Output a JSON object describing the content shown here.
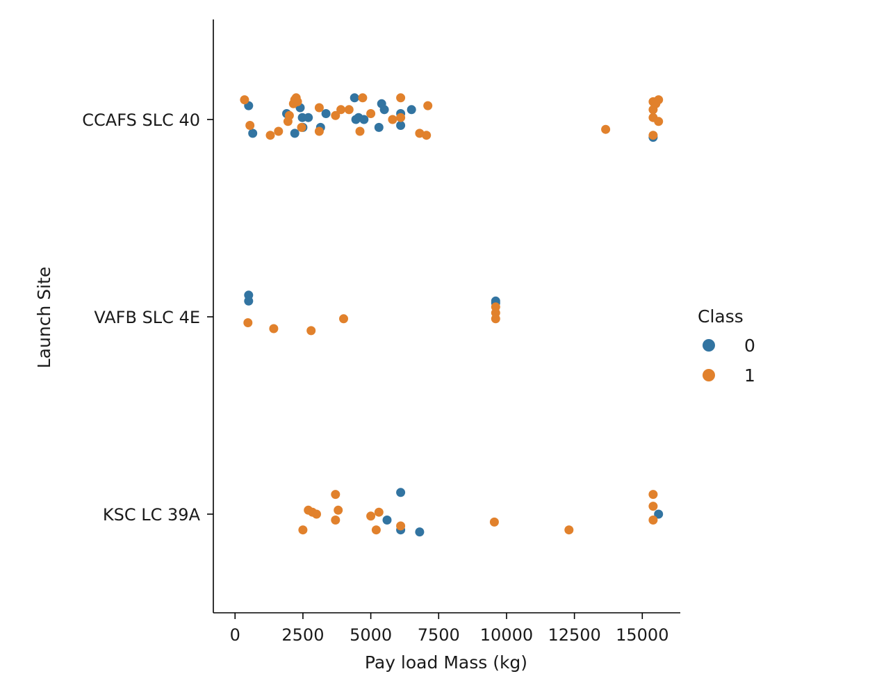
{
  "chart_data": {
    "type": "scatter",
    "title": "",
    "xlabel": "Pay load Mass (kg)",
    "ylabel": "Launch Site",
    "xlim": [
      -800,
      16400
    ],
    "xticks": [
      0,
      2500,
      5000,
      7500,
      10000,
      12500,
      15000
    ],
    "xtick_labels": [
      "0",
      "2500",
      "5000",
      "7500",
      "10000",
      "12500",
      "15000"
    ],
    "categories": [
      "CCAFS SLC 40",
      "VAFB SLC 4E",
      "KSC LC 39A"
    ],
    "grid": false,
    "legend": {
      "title": "Class",
      "placement": "right",
      "entries": [
        "0",
        "1"
      ]
    },
    "colors": {
      "0": "#3274a1",
      "1": "#e1812c"
    },
    "series": [
      {
        "name": "0",
        "points": [
          {
            "x": 500,
            "site": "CCAFS SLC 40",
            "jitter": -0.07
          },
          {
            "x": 650,
            "site": "CCAFS SLC 40",
            "jitter": 0.07
          },
          {
            "x": 1900,
            "site": "CCAFS SLC 40",
            "jitter": -0.03
          },
          {
            "x": 2200,
            "site": "CCAFS SLC 40",
            "jitter": 0.07
          },
          {
            "x": 2400,
            "site": "CCAFS SLC 40",
            "jitter": -0.06
          },
          {
            "x": 2480,
            "site": "CCAFS SLC 40",
            "jitter": -0.01
          },
          {
            "x": 2500,
            "site": "CCAFS SLC 40",
            "jitter": 0.04
          },
          {
            "x": 2700,
            "site": "CCAFS SLC 40",
            "jitter": -0.01
          },
          {
            "x": 3150,
            "site": "CCAFS SLC 40",
            "jitter": 0.04
          },
          {
            "x": 3350,
            "site": "CCAFS SLC 40",
            "jitter": -0.03
          },
          {
            "x": 4400,
            "site": "CCAFS SLC 40",
            "jitter": -0.11
          },
          {
            "x": 4450,
            "site": "CCAFS SLC 40",
            "jitter": 0.0
          },
          {
            "x": 4550,
            "site": "CCAFS SLC 40",
            "jitter": -0.01
          },
          {
            "x": 4750,
            "site": "CCAFS SLC 40",
            "jitter": 0.0
          },
          {
            "x": 5300,
            "site": "CCAFS SLC 40",
            "jitter": 0.04
          },
          {
            "x": 5400,
            "site": "CCAFS SLC 40",
            "jitter": -0.08
          },
          {
            "x": 5500,
            "site": "CCAFS SLC 40",
            "jitter": -0.05
          },
          {
            "x": 6100,
            "site": "CCAFS SLC 40",
            "jitter": -0.03
          },
          {
            "x": 6100,
            "site": "CCAFS SLC 40",
            "jitter": 0.03
          },
          {
            "x": 6500,
            "site": "CCAFS SLC 40",
            "jitter": -0.05
          },
          {
            "x": 15400,
            "site": "CCAFS SLC 40",
            "jitter": 0.09
          },
          {
            "x": 500,
            "site": "VAFB SLC 4E",
            "jitter": -0.11
          },
          {
            "x": 500,
            "site": "VAFB SLC 4E",
            "jitter": -0.08
          },
          {
            "x": 9600,
            "site": "VAFB SLC 4E",
            "jitter": -0.08
          },
          {
            "x": 9600,
            "site": "VAFB SLC 4E",
            "jitter": -0.07
          },
          {
            "x": 6100,
            "site": "KSC LC 39A",
            "jitter": -0.11
          },
          {
            "x": 5600,
            "site": "KSC LC 39A",
            "jitter": 0.03
          },
          {
            "x": 6100,
            "site": "KSC LC 39A",
            "jitter": 0.08
          },
          {
            "x": 6800,
            "site": "KSC LC 39A",
            "jitter": 0.09
          },
          {
            "x": 15600,
            "site": "KSC LC 39A",
            "jitter": 0.0
          }
        ]
      },
      {
        "name": "1",
        "points": [
          {
            "x": 350,
            "site": "CCAFS SLC 40",
            "jitter": -0.1
          },
          {
            "x": 550,
            "site": "CCAFS SLC 40",
            "jitter": 0.03
          },
          {
            "x": 1300,
            "site": "CCAFS SLC 40",
            "jitter": 0.08
          },
          {
            "x": 1600,
            "site": "CCAFS SLC 40",
            "jitter": 0.06
          },
          {
            "x": 1950,
            "site": "CCAFS SLC 40",
            "jitter": 0.01
          },
          {
            "x": 2000,
            "site": "CCAFS SLC 40",
            "jitter": -0.02
          },
          {
            "x": 2150,
            "site": "CCAFS SLC 40",
            "jitter": -0.08
          },
          {
            "x": 2200,
            "site": "CCAFS SLC 40",
            "jitter": -0.1
          },
          {
            "x": 2250,
            "site": "CCAFS SLC 40",
            "jitter": -0.11
          },
          {
            "x": 2300,
            "site": "CCAFS SLC 40",
            "jitter": -0.09
          },
          {
            "x": 2450,
            "site": "CCAFS SLC 40",
            "jitter": 0.04
          },
          {
            "x": 3100,
            "site": "CCAFS SLC 40",
            "jitter": -0.06
          },
          {
            "x": 3100,
            "site": "CCAFS SLC 40",
            "jitter": 0.06
          },
          {
            "x": 3700,
            "site": "CCAFS SLC 40",
            "jitter": -0.02
          },
          {
            "x": 3900,
            "site": "CCAFS SLC 40",
            "jitter": -0.05
          },
          {
            "x": 4200,
            "site": "CCAFS SLC 40",
            "jitter": -0.05
          },
          {
            "x": 4600,
            "site": "CCAFS SLC 40",
            "jitter": 0.06
          },
          {
            "x": 4700,
            "site": "CCAFS SLC 40",
            "jitter": -0.11
          },
          {
            "x": 5000,
            "site": "CCAFS SLC 40",
            "jitter": -0.03
          },
          {
            "x": 5800,
            "site": "CCAFS SLC 40",
            "jitter": 0.0
          },
          {
            "x": 6100,
            "site": "CCAFS SLC 40",
            "jitter": -0.11
          },
          {
            "x": 6100,
            "site": "CCAFS SLC 40",
            "jitter": -0.01
          },
          {
            "x": 6800,
            "site": "CCAFS SLC 40",
            "jitter": 0.07
          },
          {
            "x": 7050,
            "site": "CCAFS SLC 40",
            "jitter": 0.08
          },
          {
            "x": 7100,
            "site": "CCAFS SLC 40",
            "jitter": -0.07
          },
          {
            "x": 13650,
            "site": "CCAFS SLC 40",
            "jitter": 0.05
          },
          {
            "x": 15400,
            "site": "CCAFS SLC 40",
            "jitter": -0.09
          },
          {
            "x": 15400,
            "site": "CCAFS SLC 40",
            "jitter": -0.05
          },
          {
            "x": 15400,
            "site": "CCAFS SLC 40",
            "jitter": -0.01
          },
          {
            "x": 15400,
            "site": "CCAFS SLC 40",
            "jitter": 0.08
          },
          {
            "x": 15500,
            "site": "CCAFS SLC 40",
            "jitter": -0.08
          },
          {
            "x": 15600,
            "site": "CCAFS SLC 40",
            "jitter": -0.1
          },
          {
            "x": 15600,
            "site": "CCAFS SLC 40",
            "jitter": 0.01
          },
          {
            "x": 9600,
            "site": "VAFB SLC 4E",
            "jitter": -0.05
          },
          {
            "x": 9600,
            "site": "VAFB SLC 4E",
            "jitter": -0.02
          },
          {
            "x": 9600,
            "site": "VAFB SLC 4E",
            "jitter": 0.01
          },
          {
            "x": 475,
            "site": "VAFB SLC 4E",
            "jitter": 0.03
          },
          {
            "x": 1425,
            "site": "VAFB SLC 4E",
            "jitter": 0.06
          },
          {
            "x": 2800,
            "site": "VAFB SLC 4E",
            "jitter": 0.07
          },
          {
            "x": 4000,
            "site": "VAFB SLC 4E",
            "jitter": 0.01
          },
          {
            "x": 3700,
            "site": "KSC LC 39A",
            "jitter": -0.1
          },
          {
            "x": 2700,
            "site": "KSC LC 39A",
            "jitter": -0.02
          },
          {
            "x": 2850,
            "site": "KSC LC 39A",
            "jitter": -0.01
          },
          {
            "x": 3000,
            "site": "KSC LC 39A",
            "jitter": 0.0
          },
          {
            "x": 3800,
            "site": "KSC LC 39A",
            "jitter": -0.02
          },
          {
            "x": 3700,
            "site": "KSC LC 39A",
            "jitter": 0.03
          },
          {
            "x": 2500,
            "site": "KSC LC 39A",
            "jitter": 0.08
          },
          {
            "x": 5000,
            "site": "KSC LC 39A",
            "jitter": 0.01
          },
          {
            "x": 5300,
            "site": "KSC LC 39A",
            "jitter": -0.01
          },
          {
            "x": 5200,
            "site": "KSC LC 39A",
            "jitter": 0.08
          },
          {
            "x": 6100,
            "site": "KSC LC 39A",
            "jitter": 0.06
          },
          {
            "x": 9550,
            "site": "KSC LC 39A",
            "jitter": 0.04
          },
          {
            "x": 12300,
            "site": "KSC LC 39A",
            "jitter": 0.08
          },
          {
            "x": 15400,
            "site": "KSC LC 39A",
            "jitter": -0.1
          },
          {
            "x": 15400,
            "site": "KSC LC 39A",
            "jitter": -0.04
          },
          {
            "x": 15400,
            "site": "KSC LC 39A",
            "jitter": 0.03
          }
        ]
      }
    ]
  }
}
